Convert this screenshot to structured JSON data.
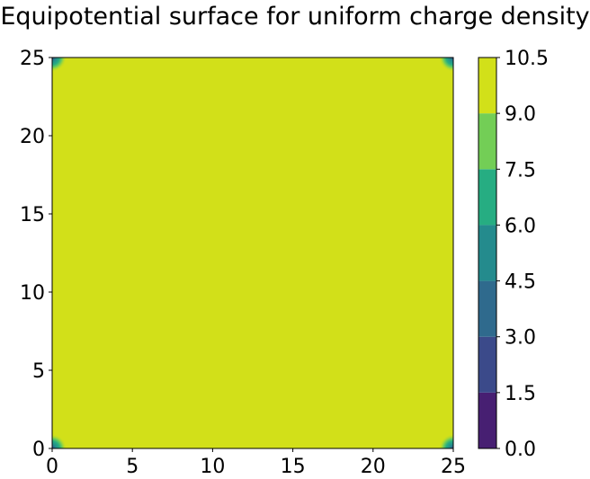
{
  "chart_data": {
    "type": "heatmap",
    "subtype": "filled-contour",
    "title": "Equipotential surface for uniform charge density",
    "xlabel": "",
    "ylabel": "",
    "xlim": [
      0,
      25
    ],
    "ylim": [
      0,
      25
    ],
    "x_ticks": [
      0,
      5,
      10,
      15,
      20,
      25
    ],
    "y_ticks": [
      0,
      5,
      10,
      15,
      20,
      25
    ],
    "grid": false,
    "colorbar": {
      "levels": [
        0.0,
        1.5,
        3.0,
        4.5,
        6.0,
        7.5,
        9.0,
        10.5
      ],
      "tick_labels": [
        "0.0",
        "1.5",
        "3.0",
        "4.5",
        "6.0",
        "7.5",
        "9.0",
        "10.5"
      ],
      "band_colors": [
        "#471f72",
        "#3b4a8a",
        "#2f6a8d",
        "#248b8d",
        "#26ad82",
        "#73ce56",
        "#d2e019"
      ],
      "placement": "right"
    },
    "fill_value_band": [
      9.0,
      10.5
    ],
    "corner_gradients": [
      "bottom-left",
      "top-left",
      "bottom-right",
      "top-right"
    ]
  }
}
